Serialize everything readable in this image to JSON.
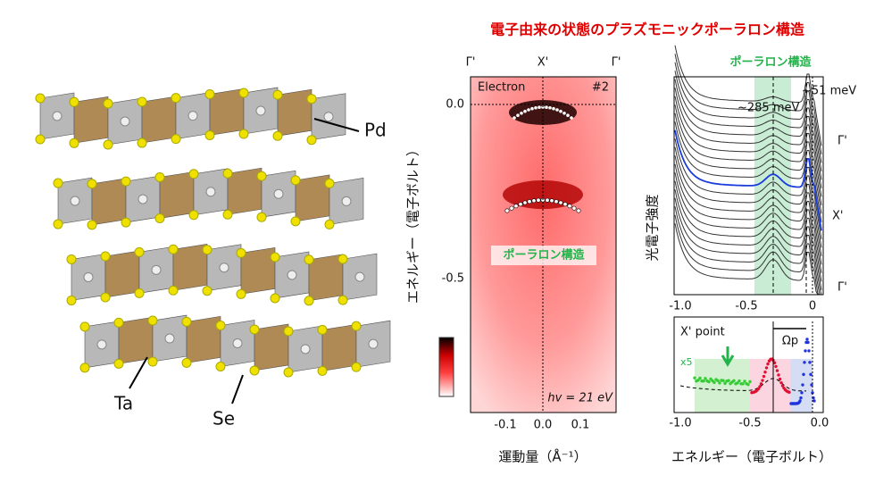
{
  "title": "電子由来の状態のプラズモニックポーラロン構造",
  "structure": {
    "labels": [
      "Pd",
      "Ta",
      "Se"
    ]
  },
  "arpes": {
    "top_labels": [
      "Γ'",
      "X'",
      "Γ'"
    ],
    "tag": "Electron",
    "sample": "#2",
    "yticks": [
      "0.0",
      "-0.5"
    ],
    "band_label": "ポーラロン構造",
    "photon": "hv = 21 eV",
    "xticks": [
      "-0.1",
      "0.0",
      "0.1"
    ],
    "xlabel": "運動量（Å⁻¹）",
    "ylabel": "エネルギー（電子ボルト）"
  },
  "edc": {
    "band_label": "ポーラロン構造",
    "annotations": [
      "~51 meV",
      "~285 meV"
    ],
    "side_labels": [
      "Γ'",
      "X'",
      "Γ'"
    ],
    "xticks": [
      "-1.0",
      "-0.5",
      "0"
    ],
    "ylabel": "光電子強度"
  },
  "xpoint": {
    "label": "X' point",
    "scale": "x5",
    "omega": "Ωp",
    "xticks": [
      "-1.0",
      "-0.5",
      "0.0"
    ],
    "xlabel": "エネルギー（電子ボルト）"
  }
}
